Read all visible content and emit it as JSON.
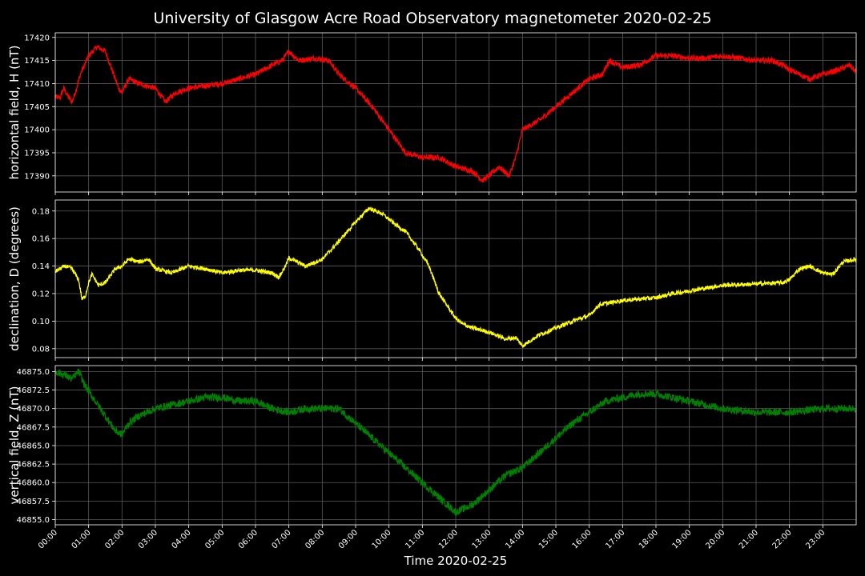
{
  "chart_data": {
    "title": "University of Glasgow Acre Road Observatory magnetometer 2020-02-25",
    "xlabel": "Time 2020-02-25",
    "x_ticks": [
      "00:00",
      "01:00",
      "02:00",
      "03:00",
      "04:00",
      "05:00",
      "06:00",
      "07:00",
      "08:00",
      "09:00",
      "10:00",
      "11:00",
      "12:00",
      "13:00",
      "14:00",
      "15:00",
      "16:00",
      "17:00",
      "18:00",
      "19:00",
      "20:00",
      "21:00",
      "22:00",
      "23:00"
    ],
    "x_range_hours": [
      0,
      24
    ],
    "grid": true,
    "panels": [
      {
        "type": "line",
        "ylabel": "horizontal field, H (nT)",
        "color": "#ff0000",
        "ylim": [
          17386.5,
          17421
        ],
        "y_ticks": [
          17390,
          17395,
          17400,
          17405,
          17410,
          17415,
          17420
        ],
        "y_tick_labels": [
          "17390",
          "17395",
          "17400",
          "17405",
          "17410",
          "17415",
          "17420"
        ],
        "noise": 0.6,
        "x": [
          0,
          0.15,
          0.25,
          0.4,
          0.5,
          0.6,
          0.75,
          1.0,
          1.25,
          1.5,
          1.7,
          1.9,
          2.0,
          2.2,
          2.5,
          3.0,
          3.3,
          3.6,
          4.0,
          4.5,
          5.0,
          5.5,
          6.0,
          6.5,
          6.8,
          7.0,
          7.3,
          7.8,
          8.2,
          8.5,
          9.0,
          9.5,
          10.0,
          10.5,
          11.0,
          11.5,
          12.0,
          12.5,
          12.8,
          13.0,
          13.3,
          13.6,
          13.8,
          14.0,
          14.5,
          15.0,
          15.5,
          16.0,
          16.4,
          16.6,
          17.0,
          17.5,
          18.0,
          18.5,
          19.0,
          19.5,
          20.0,
          20.5,
          21.0,
          21.5,
          21.8,
          22.0,
          22.3,
          22.6,
          23.0,
          23.5,
          23.8,
          24.0
        ],
        "y": [
          17407,
          17407,
          17409,
          17407,
          17406,
          17408,
          17412,
          17416,
          17418,
          17417,
          17413,
          17409,
          17408,
          17411,
          17410,
          17409,
          17406,
          17408,
          17409,
          17409.5,
          17410,
          17411,
          17412,
          17414,
          17415,
          17417,
          17415,
          17415.5,
          17415,
          17412,
          17409,
          17405,
          17400,
          17395,
          17394,
          17394,
          17392,
          17391,
          17389,
          17390,
          17392,
          17390,
          17394,
          17400,
          17402,
          17405,
          17408,
          17411,
          17412,
          17415,
          17413.5,
          17414,
          17416,
          17416,
          17415.5,
          17415.5,
          17416,
          17415.5,
          17415,
          17415,
          17414,
          17413,
          17412,
          17411,
          17412,
          17413,
          17414,
          17412.5
        ]
      },
      {
        "type": "line",
        "ylabel": "declination, D (degrees)",
        "color": "#ffff00",
        "ylim": [
          0.0735,
          0.188
        ],
        "y_ticks": [
          0.08,
          0.1,
          0.12,
          0.14,
          0.16,
          0.18
        ],
        "y_tick_labels": [
          "0.08",
          "0.10",
          "0.12",
          "0.14",
          "0.16",
          "0.18"
        ],
        "noise": 0.0015,
        "x": [
          0,
          0.3,
          0.5,
          0.7,
          0.8,
          0.9,
          1.0,
          1.1,
          1.3,
          1.5,
          1.8,
          2.0,
          2.2,
          2.5,
          2.8,
          3.0,
          3.5,
          4.0,
          4.5,
          5.0,
          5.5,
          6.0,
          6.5,
          6.7,
          6.9,
          7.0,
          7.5,
          8.0,
          8.5,
          9.0,
          9.4,
          9.8,
          10.2,
          10.5,
          10.9,
          11.2,
          11.5,
          12.0,
          12.2,
          12.5,
          13.0,
          13.5,
          13.8,
          14.0,
          14.5,
          15.0,
          15.5,
          16.0,
          16.3,
          17.0,
          17.5,
          18.0,
          18.5,
          19.0,
          20.0,
          21.0,
          21.8,
          22.0,
          22.3,
          22.6,
          23.0,
          23.3,
          23.6,
          24.0
        ],
        "y": [
          0.136,
          0.14,
          0.138,
          0.13,
          0.116,
          0.118,
          0.128,
          0.134,
          0.126,
          0.128,
          0.138,
          0.14,
          0.145,
          0.143,
          0.145,
          0.138,
          0.135,
          0.14,
          0.138,
          0.135,
          0.137,
          0.137,
          0.135,
          0.132,
          0.14,
          0.146,
          0.14,
          0.145,
          0.158,
          0.172,
          0.182,
          0.178,
          0.17,
          0.165,
          0.152,
          0.14,
          0.12,
          0.102,
          0.098,
          0.095,
          0.092,
          0.087,
          0.088,
          0.082,
          0.09,
          0.095,
          0.1,
          0.104,
          0.112,
          0.115,
          0.116,
          0.117,
          0.12,
          0.122,
          0.126,
          0.127,
          0.128,
          0.13,
          0.138,
          0.14,
          0.135,
          0.134,
          0.143,
          0.145
        ]
      },
      {
        "type": "line",
        "ylabel": "vertical field, Z (nT)",
        "color": "#008000",
        "ylim": [
          46854.3,
          46875.8
        ],
        "y_ticks": [
          46855.0,
          46857.5,
          46860.0,
          46862.5,
          46865.0,
          46867.5,
          46870.0,
          46872.5,
          46875.0
        ],
        "y_tick_labels": [
          "46855.0",
          "46857.5",
          "46860.0",
          "46862.5",
          "46865.0",
          "46867.5",
          "46870.0",
          "46872.5",
          "46875.0"
        ],
        "noise": 0.5,
        "x": [
          0,
          0.3,
          0.5,
          0.7,
          0.9,
          1.2,
          1.5,
          1.8,
          2.0,
          2.2,
          2.5,
          3.0,
          3.5,
          4.0,
          4.5,
          5.0,
          5.5,
          6.0,
          6.5,
          7.0,
          7.5,
          8.0,
          8.5,
          9.0,
          9.5,
          10.0,
          10.5,
          11.0,
          11.5,
          12.0,
          12.5,
          13.0,
          13.5,
          14.0,
          14.5,
          15.0,
          15.5,
          16.0,
          16.5,
          17.0,
          17.5,
          18.0,
          18.5,
          19.0,
          19.5,
          20.0,
          21.0,
          22.0,
          23.0,
          24.0
        ],
        "y": [
          46875,
          46874.5,
          46874,
          46875,
          46873,
          46871,
          46869,
          46867,
          46866.5,
          46868,
          46869,
          46870,
          46870.5,
          46871,
          46871.5,
          46871.5,
          46871,
          46871,
          46870,
          46869.5,
          46870,
          46870,
          46870,
          46868,
          46866,
          46864,
          46862,
          46860,
          46858,
          46856,
          46857,
          46859,
          46861,
          46862,
          46864,
          46866,
          46868,
          46869.5,
          46871,
          46871.5,
          46872,
          46872,
          46871.5,
          46871,
          46870.5,
          46870,
          46869.5,
          46869.5,
          46870,
          46870
        ]
      }
    ]
  }
}
